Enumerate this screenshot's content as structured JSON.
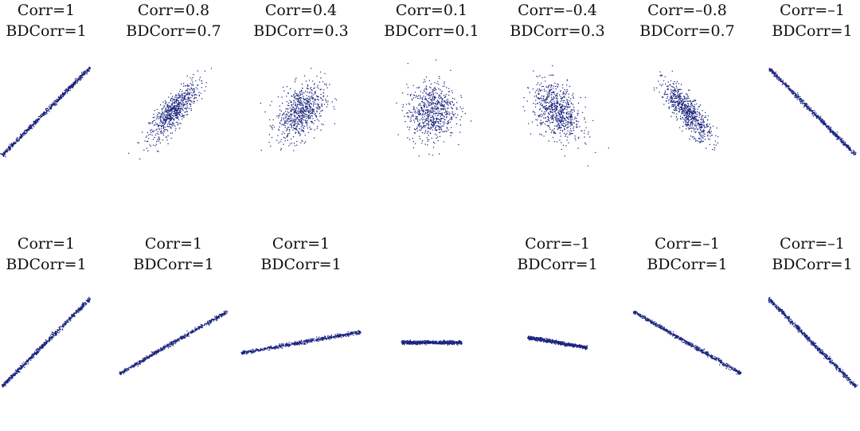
{
  "colors": {
    "points": "#1a237e",
    "background": "#ffffff"
  },
  "chart_data": {
    "type": "scatter",
    "grid": false,
    "legend": "none",
    "panels": [
      {
        "corr_label": "Corr=1",
        "bdcorr_label": "BDCorr=1",
        "rho": 1.0,
        "angle_deg": 45,
        "row": 0
      },
      {
        "corr_label": "Corr=0.8",
        "bdcorr_label": "BDCorr=0.7",
        "rho": 0.8,
        "angle_deg": 45,
        "row": 0
      },
      {
        "corr_label": "Corr=0.4",
        "bdcorr_label": "BDCorr=0.3",
        "rho": 0.4,
        "angle_deg": 45,
        "row": 0
      },
      {
        "corr_label": "Corr=0.1",
        "bdcorr_label": "BDCorr=0.1",
        "rho": 0.1,
        "angle_deg": 45,
        "row": 0
      },
      {
        "corr_label": "Corr=–0.4",
        "bdcorr_label": "BDCorr=0.3",
        "rho": -0.4,
        "angle_deg": 135,
        "row": 0
      },
      {
        "corr_label": "Corr=–0.8",
        "bdcorr_label": "BDCorr=0.7",
        "rho": -0.8,
        "angle_deg": 135,
        "row": 0
      },
      {
        "corr_label": "Corr=–1",
        "bdcorr_label": "BDCorr=1",
        "rho": -1.0,
        "angle_deg": 135,
        "row": 0
      },
      {
        "corr_label": "Corr=1",
        "bdcorr_label": "BDCorr=1",
        "rho": 1.0,
        "angle_deg": 45,
        "row": 1
      },
      {
        "corr_label": "Corr=1",
        "bdcorr_label": "BDCorr=1",
        "rho": 1.0,
        "angle_deg": 30,
        "row": 1
      },
      {
        "corr_label": "Corr=1",
        "bdcorr_label": "BDCorr=1",
        "rho": 1.0,
        "angle_deg": 10,
        "row": 1
      },
      {
        "corr_label": "",
        "bdcorr_label": "",
        "rho": 0.0,
        "angle_deg": 0,
        "row": 1
      },
      {
        "corr_label": "Corr=–1",
        "bdcorr_label": "BDCorr=1",
        "rho": -1.0,
        "angle_deg": 170,
        "row": 1
      },
      {
        "corr_label": "Corr=–1",
        "bdcorr_label": "BDCorr=1",
        "rho": -1.0,
        "angle_deg": 150,
        "row": 1
      },
      {
        "corr_label": "Corr=–1",
        "bdcorr_label": "BDCorr=1",
        "rho": -1.0,
        "angle_deg": 135,
        "row": 1
      }
    ]
  }
}
